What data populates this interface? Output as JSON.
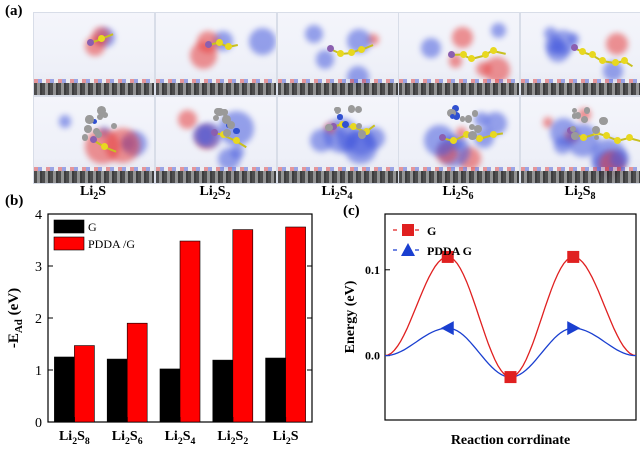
{
  "panels": {
    "a": "(a)",
    "b": "(b)",
    "c": "(c)"
  },
  "molecules": [
    {
      "base": "Li",
      "s1": "2",
      "mid": "S",
      "s2": ""
    },
    {
      "base": "Li",
      "s1": "2",
      "mid": "S",
      "s2": "2"
    },
    {
      "base": "Li",
      "s1": "2",
      "mid": "S",
      "s2": "4"
    },
    {
      "base": "Li",
      "s1": "2",
      "mid": "S",
      "s2": "6"
    },
    {
      "base": "Li",
      "s1": "2",
      "mid": "S",
      "s2": "8"
    }
  ],
  "chart_data": [
    {
      "type": "bar",
      "categories": [
        {
          "base": "Li",
          "s1": "2",
          "mid": "S",
          "s2": "8"
        },
        {
          "base": "Li",
          "s1": "2",
          "mid": "S",
          "s2": "6"
        },
        {
          "base": "Li",
          "s1": "2",
          "mid": "S",
          "s2": "4"
        },
        {
          "base": "Li",
          "s1": "2",
          "mid": "S",
          "s2": "2"
        },
        {
          "base": "Li",
          "s1": "2",
          "mid": "S",
          "s2": ""
        }
      ],
      "series": [
        {
          "name": "G",
          "color": "#000000",
          "values": [
            1.25,
            1.21,
            1.02,
            1.19,
            1.23
          ]
        },
        {
          "name": "PDDA /G",
          "color": "#ff0000",
          "values": [
            1.47,
            1.9,
            3.48,
            3.7,
            3.75
          ]
        }
      ],
      "ylabel": {
        "prefix": "-E",
        "sub": "Ad",
        "suffix": " (eV)"
      },
      "ylim": [
        0,
        4
      ],
      "yticks": [
        0,
        1,
        2,
        3,
        4
      ],
      "legend": "top-left"
    },
    {
      "type": "line",
      "xlabel": "Reaction corrdinate",
      "ylabel": "Energy (eV)",
      "ylim": [
        -0.075,
        0.165
      ],
      "yticks": [
        0.0,
        0.1
      ],
      "ytick_labels": [
        "0.0",
        "0.1"
      ],
      "series": [
        {
          "name": "G",
          "color": "#e02020",
          "marker": "square",
          "x": [
            0,
            1,
            2,
            3,
            4
          ],
          "y": [
            0.0,
            0.115,
            -0.025,
            0.115,
            0.0
          ],
          "marker_index": [
            1,
            2,
            3
          ]
        },
        {
          "name": "PDDA G",
          "color": "#1a3fd0",
          "marker": "triangle",
          "x": [
            0,
            1,
            2,
            3,
            4
          ],
          "y": [
            0.0,
            0.032,
            -0.025,
            0.032,
            0.0
          ],
          "marker_index": [
            1,
            3
          ]
        }
      ],
      "legend": "top-left"
    }
  ]
}
